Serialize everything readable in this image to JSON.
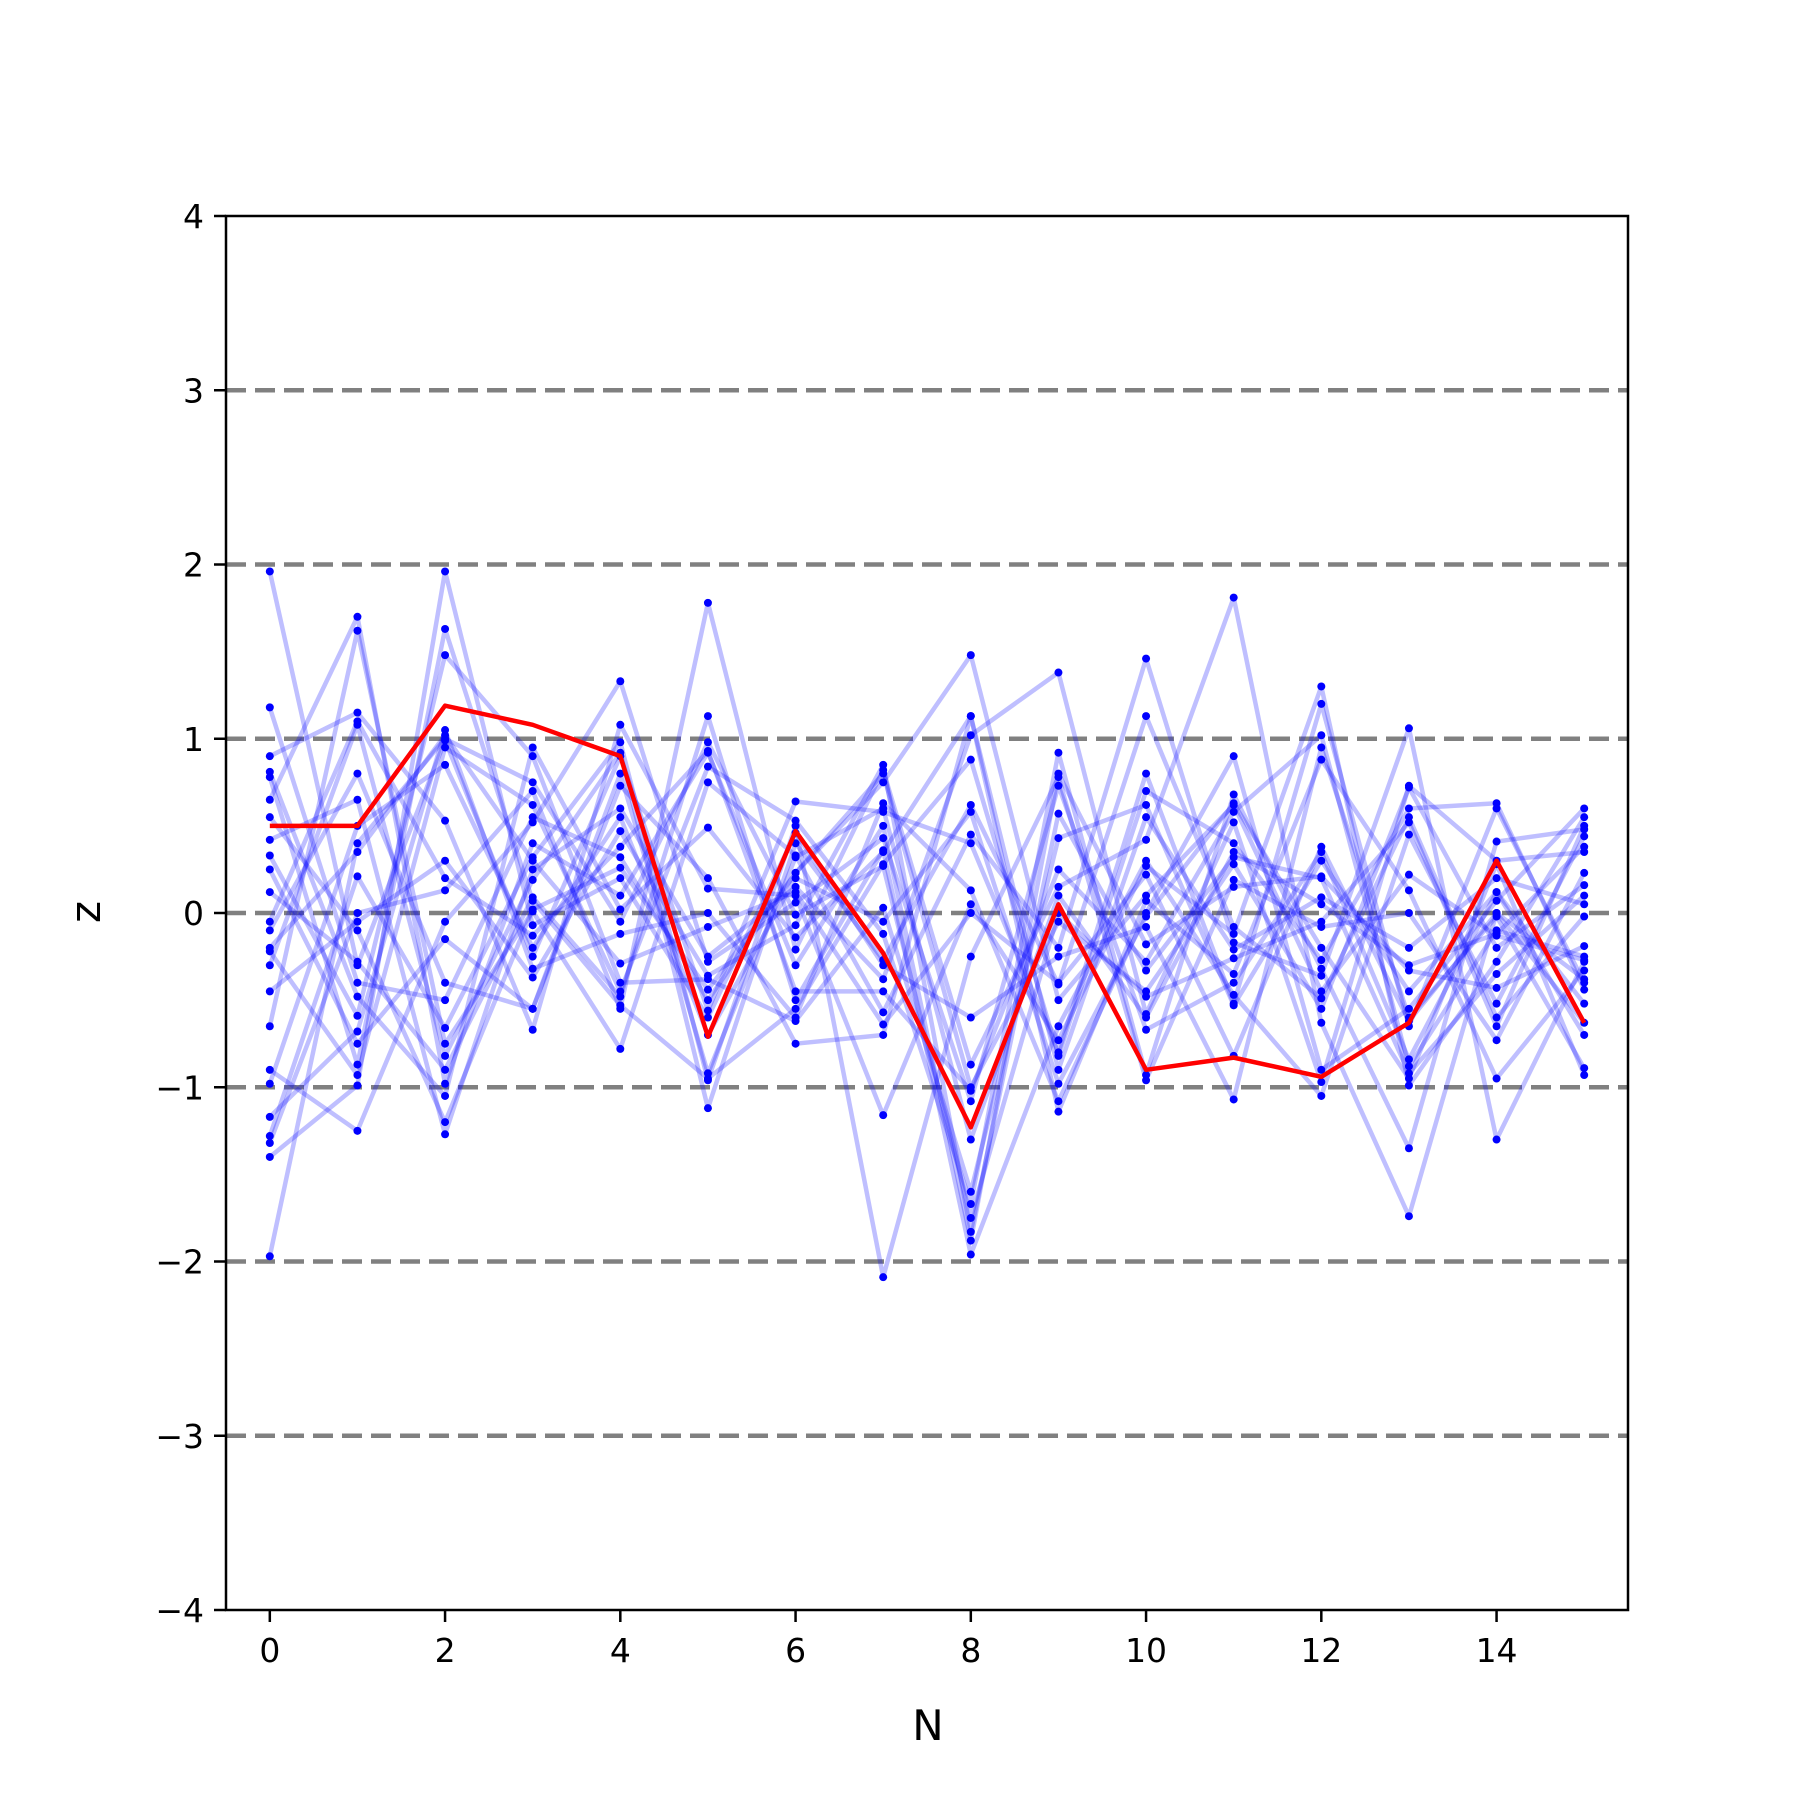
{
  "chart_data": {
    "type": "line",
    "title": "",
    "xlabel": "N",
    "ylabel": "z",
    "xlim": [
      -0.5,
      15.5
    ],
    "ylim": [
      -4,
      4
    ],
    "xticks": [
      0,
      2,
      4,
      6,
      8,
      10,
      12,
      14
    ],
    "xtick_labels": [
      "0",
      "2",
      "4",
      "6",
      "8",
      "10",
      "12",
      "14"
    ],
    "yticks": [
      -4,
      -3,
      -2,
      -1,
      0,
      1,
      2,
      3,
      4
    ],
    "ytick_labels": [
      "−4",
      "−3",
      "−2",
      "−1",
      "0",
      "1",
      "2",
      "3",
      "4"
    ],
    "reference_lines": [
      -3,
      -2,
      -1,
      0,
      1,
      2,
      3
    ],
    "grid": false,
    "legend": "none",
    "colors": {
      "background_series": "#0000ff",
      "highlight": "#ff0000",
      "reference": "#808080",
      "axes": "#000000"
    },
    "x": [
      0,
      1,
      2,
      3,
      4,
      5,
      6,
      7,
      8,
      9,
      10,
      11,
      12,
      13,
      14,
      15
    ],
    "series": [
      {
        "values": [
          1.96,
          -0.3,
          0.99,
          -0.25,
          0.9,
          -0.56,
          0.64,
          0.58,
          0.4,
          -0.8,
          0.8,
          -0.52,
          1.2,
          -0.65,
          0.6,
          -0.4
        ]
      },
      {
        "values": [
          -1.97,
          0.4,
          1.0,
          0.75,
          -0.05,
          0.98,
          -0.01,
          0.27,
          -1.75,
          0.0,
          -0.48,
          -0.26,
          -0.05,
          0.52,
          -0.65,
          0.5
        ]
      },
      {
        "values": [
          1.18,
          -0.4,
          -0.5,
          0.55,
          0.32,
          -0.5,
          0.23,
          0.75,
          1.48,
          -0.5,
          0.1,
          0.62,
          -0.45,
          0.22,
          -0.13,
          -0.27
        ]
      },
      {
        "values": [
          0.9,
          1.15,
          0.53,
          -0.67,
          1.08,
          0.14,
          0.1,
          -1.16,
          0.05,
          -0.73,
          0.27,
          -0.12,
          1.3,
          -0.99,
          -0.28,
          0.55
        ]
      },
      {
        "values": [
          0.78,
          -0.87,
          1.63,
          0.07,
          -0.53,
          -0.95,
          -0.55,
          0.28,
          0.88,
          -0.82,
          0.7,
          0.4,
          -0.27,
          0.6,
          0.63,
          -0.44
        ]
      },
      {
        "values": [
          0.65,
          1.7,
          -0.98,
          0.4,
          0.1,
          0.92,
          -0.3,
          0.5,
          -1.88,
          0.8,
          -0.18,
          0.15,
          0.21,
          -0.33,
          -0.43,
          -0.19
        ]
      },
      {
        "values": [
          0.42,
          0.65,
          -1.27,
          0.25,
          0.6,
          -0.25,
          0.15,
          -0.38,
          1.02,
          1.38,
          -0.58,
          0.52,
          -0.97,
          0.73,
          0.3,
          0.35
        ]
      },
      {
        "values": [
          0.33,
          -0.59,
          1.48,
          0.9,
          -0.4,
          -0.38,
          -0.62,
          0.03,
          -1.6,
          0.43,
          0.62,
          -0.53,
          0.3,
          -0.45,
          0.12,
          -0.52
        ]
      },
      {
        "values": [
          -0.1,
          0.8,
          -0.4,
          -0.55,
          0.73,
          0.2,
          -0.75,
          -0.7,
          1.13,
          -1.14,
          0.07,
          -0.35,
          0.88,
          0.13,
          -0.95,
          -0.33
        ]
      },
      {
        "values": [
          -0.22,
          -0.93,
          0.95,
          0.62,
          -0.45,
          0.84,
          0.53,
          -0.12,
          -1.67,
          0.92,
          -0.93,
          0.68,
          -0.32,
          -1.35,
          0.41,
          0.48
        ]
      },
      {
        "values": [
          -0.3,
          1.08,
          -0.82,
          0.19,
          0.92,
          -1.12,
          0.4,
          -0.27,
          0.62,
          -0.41,
          1.13,
          -0.08,
          -0.49,
          0.55,
          -0.6,
          -0.02
        ]
      },
      {
        "values": [
          -0.45,
          -0.05,
          0.3,
          -0.37,
          0.47,
          -0.36,
          -0.07,
          0.85,
          -1.83,
          0.57,
          -0.33,
          0.32,
          0.2,
          -0.92,
          -0.35,
          0.1
        ]
      },
      {
        "values": [
          -0.65,
          1.62,
          -0.75,
          0.01,
          -0.78,
          0.75,
          0.33,
          -0.57,
          0.45,
          -0.2,
          1.46,
          -0.17,
          -0.36,
          1.06,
          -1.3,
          -0.28
        ]
      },
      {
        "values": [
          -0.9,
          -1.25,
          -0.05,
          0.52,
          1.33,
          -0.28,
          0.06,
          0.43,
          -1.08,
          0.73,
          -0.67,
          -0.4,
          0.35,
          -0.84,
          0.12,
          -0.7
        ]
      },
      {
        "values": [
          -1.17,
          -0.68,
          1.05,
          -0.32,
          -0.12,
          0.0,
          -0.6,
          0.63,
          0.13,
          -1.08,
          0.0,
          0.9,
          -0.9,
          -0.55,
          0.07,
          0.6
        ]
      },
      {
        "values": [
          -1.28,
          0.21,
          -0.66,
          0.32,
          0.98,
          -0.96,
          0.5,
          -2.09,
          -0.25,
          0.78,
          -0.96,
          0.19,
          -0.08,
          0.0,
          -0.73,
          0.23
        ]
      },
      {
        "values": [
          -1.32,
          0.0,
          0.13,
          0.7,
          -0.55,
          1.78,
          -0.21,
          0.82,
          -0.87,
          0.15,
          0.42,
          1.81,
          -0.63,
          -1.74,
          0.0,
          -0.63
        ]
      },
      {
        "values": [
          -1.4,
          -0.99,
          1.96,
          -0.07,
          0.2,
          -0.6,
          0.46,
          -0.3,
          -0.6,
          -0.25,
          -0.08,
          -1.07,
          0.95,
          -0.6,
          -0.02,
          -0.89
        ]
      },
      {
        "values": [
          0.81,
          -0.48,
          -1.05,
          0.95,
          0.02,
          0.49,
          -0.14,
          0.35,
          1.13,
          -0.9,
          0.55,
          -0.21,
          0.09,
          -0.2,
          0.2,
          0.05
        ]
      },
      {
        "values": [
          -0.05,
          1.1,
          0.2,
          -0.13,
          0.38,
          0.93,
          -0.45,
          -0.45,
          -1.02,
          0.25,
          -0.28,
          0.58,
          1.02,
          -0.88,
          -0.1,
          -0.25
        ]
      },
      {
        "values": [
          0.12,
          -0.28,
          -0.9,
          0.09,
          -0.48,
          1.13,
          -0.5,
          0.36,
          -1.96,
          -0.65,
          0.3,
          -0.47,
          -1.05,
          0.45,
          -0.52,
          0.44
        ]
      },
      {
        "values": [
          -0.98,
          0.5,
          0.85,
          -0.2,
          0.55,
          -0.7,
          0.2,
          -0.05,
          0.58,
          -0.98,
          -0.02,
          0.63,
          -0.2,
          -0.95,
          0.28,
          -0.93
        ]
      },
      {
        "values": [
          0.55,
          -0.1,
          -1.2,
          0.02,
          0.26,
          -0.44,
          0.23,
          0.8,
          -1.0,
          -0.05,
          -0.45,
          0.28,
          -0.55,
          0.72,
          -0.2,
          0.16
        ]
      },
      {
        "values": [
          -0.2,
          0.35,
          1.02,
          0.3,
          -0.29,
          -0.08,
          0.12,
          -0.64,
          0.0,
          -0.4,
          0.22,
          -0.82,
          0.38,
          -0.62,
          0.0,
          -0.38
        ]
      },
      {
        "values": [
          0.25,
          -0.75,
          -0.15,
          -0.55,
          0.8,
          -0.92,
          0.32,
          0.6,
          -1.3,
          0.1,
          -0.6,
          0.35,
          0.05,
          -0.3,
          -0.12,
          0.38
        ]
      }
    ],
    "highlight_series": {
      "values": [
        0.5,
        0.5,
        1.19,
        1.08,
        0.9,
        -0.71,
        0.47,
        -0.23,
        -1.23,
        0.05,
        -0.9,
        -0.83,
        -0.94,
        -0.63,
        0.3,
        -0.63
      ]
    }
  }
}
